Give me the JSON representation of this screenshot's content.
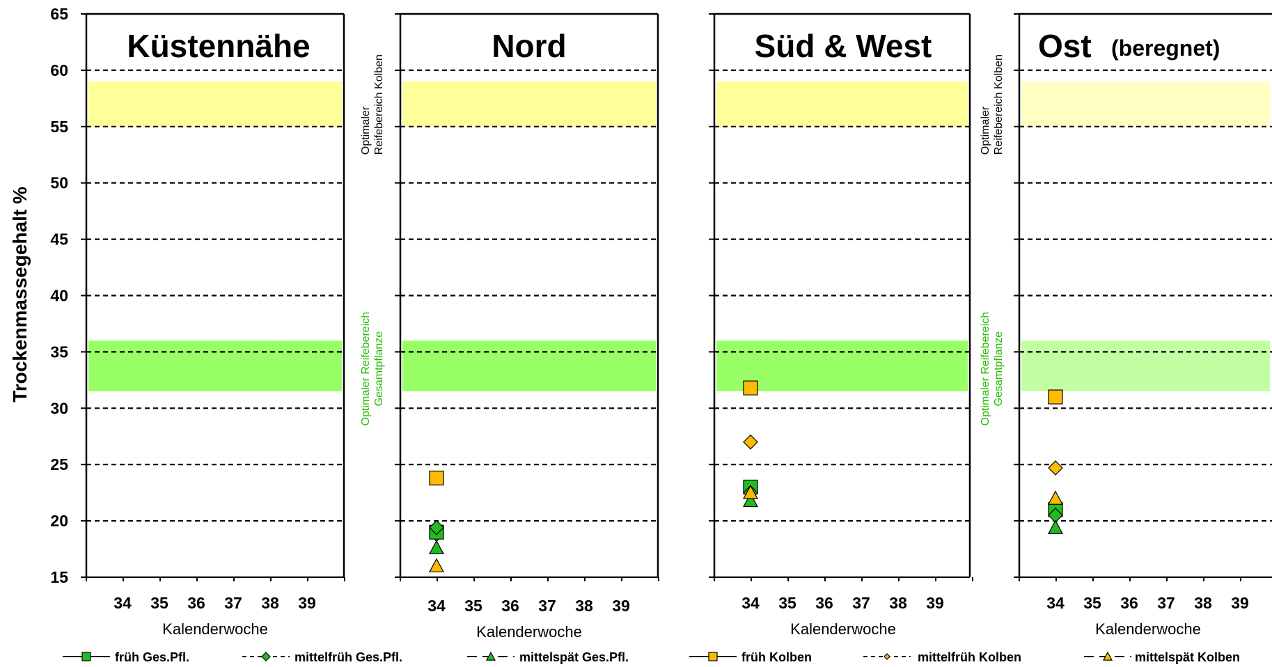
{
  "chart_data": {
    "type": "scatter",
    "ylabel": "Trockenmassegehalt %",
    "ylim": [
      15,
      65
    ],
    "yticks": [
      "65",
      "60",
      "55",
      "50",
      "45",
      "40",
      "35",
      "30",
      "25",
      "20",
      "15"
    ],
    "xticks": [
      "34",
      "35",
      "36",
      "37",
      "38",
      "39"
    ],
    "grid": "dashed horizontal at 20, 25, 30, 35, 40, 45, 50, 55, 60",
    "bands": [
      {
        "label_line1": "Optimaler",
        "label_line2": "Reifebereich  Kolben",
        "from": 55,
        "to": 59,
        "color": "#ffff99"
      },
      {
        "label_line1": "Optimaler Reifebereich",
        "label_line2": "Gesamtpflanze",
        "from": 31.5,
        "to": 36,
        "color": "#99ff66"
      }
    ],
    "panels": [
      {
        "title": "Küstennähe",
        "title_suffix": "",
        "xlabel": "Kalenderwoche",
        "points": {}
      },
      {
        "title": "Nord",
        "title_suffix": "",
        "xlabel": "Kalenderwoche",
        "points": {
          "frueh_ges": 19.0,
          "mittelfrueh_ges": 19.4,
          "mittelspaet_ges": 17.6,
          "frueh_kolben": 23.8,
          "mittelfrueh_kolben": 18.8,
          "mittelspaet_kolben": 16.0
        }
      },
      {
        "title": "Süd & West",
        "title_suffix": "",
        "xlabel": "Kalenderwoche",
        "points": {
          "frueh_ges": 23.0,
          "mittelfrueh_ges": 22.5,
          "mittelspaet_ges": 21.8,
          "frueh_kolben": 31.8,
          "mittelfrueh_kolben": 27.0,
          "mittelspaet_kolben": 22.5
        }
      },
      {
        "title": "Ost",
        "title_suffix": "(beregnet)",
        "xlabel": "Kalenderwoche",
        "points": {
          "frueh_ges": 21.0,
          "mittelfrueh_ges": 20.5,
          "mittelspaet_ges": 19.4,
          "frueh_kolben": 31.0,
          "mittelfrueh_kolben": 24.7,
          "mittelspaet_kolben": 22.0
        }
      }
    ],
    "x_value": 34,
    "series": [
      {
        "key": "frueh_ges",
        "name": "früh Ges.Pfl.",
        "marker": "square",
        "color": "#22bb22",
        "line": "solid"
      },
      {
        "key": "mittelfrueh_ges",
        "name": "mittelfrüh Ges.Pfl.",
        "marker": "diamond",
        "color": "#22bb22",
        "line": "dashed"
      },
      {
        "key": "mittelspaet_ges",
        "name": "mittelspät Ges.Pfl.",
        "marker": "triangle",
        "color": "#22bb22",
        "line": "longdash"
      },
      {
        "key": "frueh_kolben",
        "name": "früh Kolben",
        "marker": "square",
        "color": "#ffbb00",
        "line": "solid"
      },
      {
        "key": "mittelfrueh_kolben",
        "name": "mittelfrüh Kolben",
        "marker": "diamond",
        "color": "#ffbb00",
        "line": "dashed"
      },
      {
        "key": "mittelspaet_kolben",
        "name": "mittelspät Kolben",
        "marker": "triangle",
        "color": "#ffbb00",
        "line": "longdash"
      }
    ]
  }
}
